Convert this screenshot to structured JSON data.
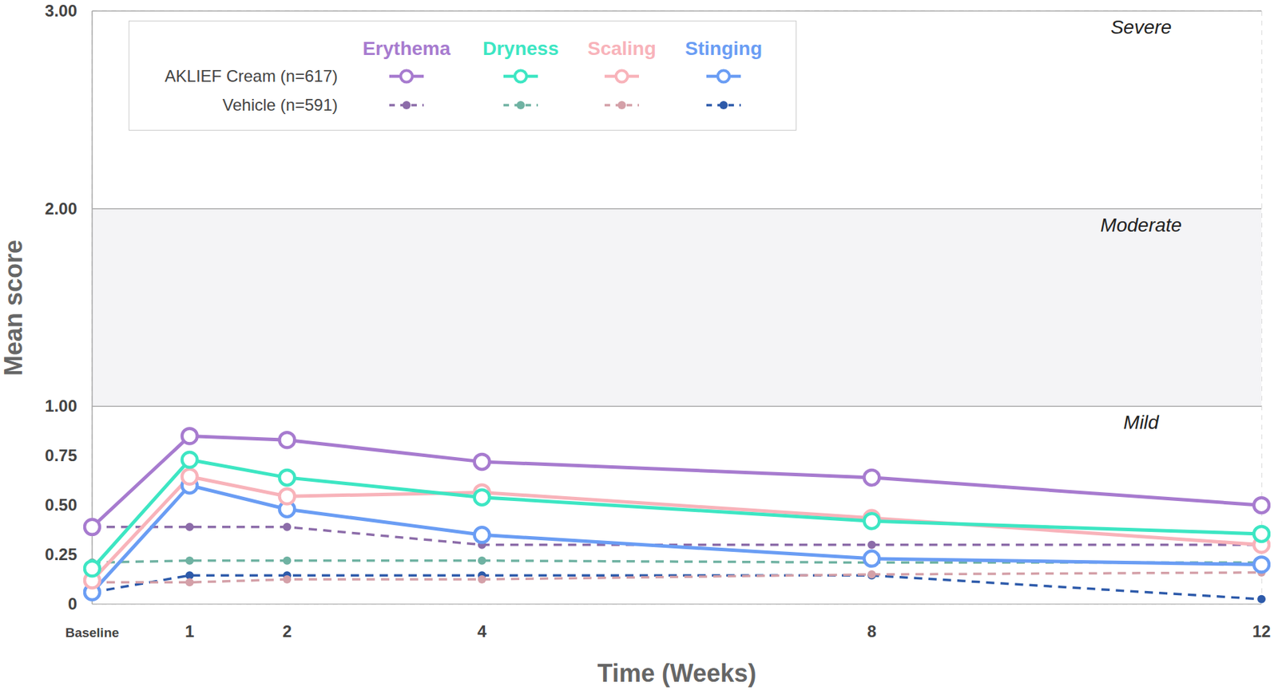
{
  "chart_data": {
    "type": "line",
    "x_label": "Time (Weeks)",
    "y_label": "Mean score",
    "x": [
      0,
      1,
      2,
      4,
      8,
      12
    ],
    "xlim": [
      0,
      12
    ],
    "xticks": [
      {
        "value": 0,
        "label": "Baseline"
      },
      1,
      2,
      4,
      8,
      12
    ],
    "ylim": [
      0,
      3
    ],
    "yticks": [
      0,
      0.25,
      {
        "value": 0.5,
        "label": "0.50"
      },
      0.75,
      {
        "value": 1,
        "label": "1.00"
      },
      {
        "value": 2,
        "label": "2.00"
      },
      {
        "value": 3,
        "label": "3.00"
      }
    ],
    "grid": true,
    "legend": "upper left",
    "bands": [
      {
        "label": "Mild",
        "y": [
          0,
          1
        ],
        "color": "#ffffff"
      },
      {
        "label": "Moderate",
        "y": [
          1,
          2
        ],
        "color": "#f4f4f6"
      },
      {
        "label": "Severe",
        "y": [
          2,
          3
        ],
        "color": "#ffffff"
      }
    ],
    "series": [
      {
        "name": "Erythema",
        "group": "AKLIEF Cream (n=617)",
        "color": "#a77bcf",
        "line_style": "solid",
        "marker": "open_circle",
        "values": [
          0.39,
          0.85,
          0.83,
          0.72,
          0.64,
          0.5
        ]
      },
      {
        "name": "Dryness",
        "group": "AKLIEF Cream (n=617)",
        "color": "#3de6c3",
        "line_style": "solid",
        "marker": "open_circle",
        "values": [
          0.18,
          0.73,
          0.64,
          0.54,
          0.42,
          0.355
        ]
      },
      {
        "name": "Scaling",
        "group": "AKLIEF Cream (n=617)",
        "color": "#f8b3ba",
        "line_style": "solid",
        "marker": "open_circle",
        "values": [
          0.12,
          0.645,
          0.545,
          0.565,
          0.435,
          0.3
        ]
      },
      {
        "name": "Stinging",
        "group": "AKLIEF Cream (n=617)",
        "color": "#6a9df4",
        "line_style": "solid",
        "marker": "open_circle",
        "values": [
          0.06,
          0.6,
          0.48,
          0.35,
          0.23,
          0.2
        ]
      },
      {
        "name": "Erythema",
        "group": "Vehicle (n=591)",
        "color": "#8c6ca9",
        "line_style": "dashed",
        "marker": "circle",
        "values": [
          0.39,
          0.39,
          0.39,
          0.3,
          0.3,
          0.3
        ]
      },
      {
        "name": "Dryness",
        "group": "Vehicle (n=591)",
        "color": "#6fb2a2",
        "line_style": "dashed",
        "marker": "circle",
        "values": [
          0.21,
          0.22,
          0.22,
          0.22,
          0.21,
          0.21
        ]
      },
      {
        "name": "Scaling",
        "group": "Vehicle (n=591)",
        "color": "#d4a0a8",
        "line_style": "dashed",
        "marker": "circle",
        "values": [
          0.11,
          0.11,
          0.125,
          0.125,
          0.15,
          0.16
        ]
      },
      {
        "name": "Stinging",
        "group": "Vehicle (n=591)",
        "color": "#2d5aaa",
        "line_style": "dashed",
        "marker": "circle",
        "values": [
          0.06,
          0.145,
          0.145,
          0.145,
          0.145,
          0.025
        ]
      }
    ]
  }
}
